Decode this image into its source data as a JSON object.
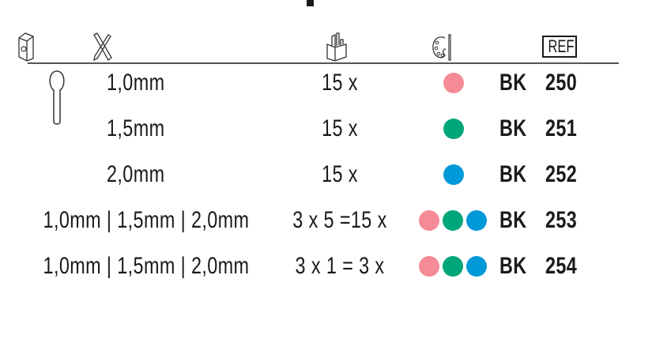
{
  "header": {
    "icons": [
      "package-icon",
      "ruler-pencil-icon",
      "pencil-holder-icon",
      "palette-icon",
      "ref-icon"
    ],
    "ref_label": "REF"
  },
  "colors": {
    "pink": "#f48b96",
    "green": "#00a679",
    "blue": "#0099d8"
  },
  "rows": [
    {
      "size": "1,0mm",
      "qty": "15 x",
      "colors": [
        "pink"
      ],
      "series": "BK",
      "ref": "250"
    },
    {
      "size": "1,5mm",
      "qty": "15 x",
      "colors": [
        "green"
      ],
      "series": "BK",
      "ref": "251"
    },
    {
      "size": "2,0mm",
      "qty": "15 x",
      "colors": [
        "blue"
      ],
      "series": "BK",
      "ref": "252"
    },
    {
      "size": "1,0mm | 1,5mm | 2,0mm",
      "qty": "3 x 5 =15 x",
      "colors": [
        "pink",
        "green",
        "blue"
      ],
      "series": "BK",
      "ref": "253"
    },
    {
      "size": "1,0mm | 1,5mm | 2,0mm",
      "qty": "3 x 1 = 3 x",
      "colors": [
        "pink",
        "green",
        "blue"
      ],
      "series": "BK",
      "ref": "254"
    }
  ]
}
